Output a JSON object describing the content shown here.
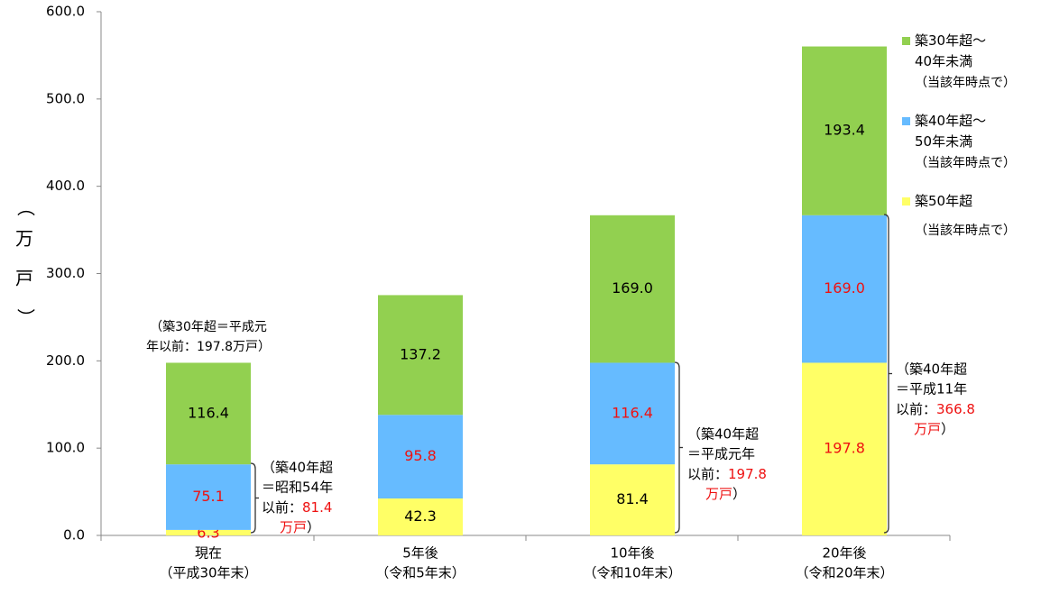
{
  "chart_data": {
    "type": "bar",
    "stacked": true,
    "ylabel": "（万戸）",
    "ylim": [
      0,
      600
    ],
    "yticks": [
      "0.0",
      "100.0",
      "200.0",
      "300.0",
      "400.0",
      "500.0",
      "600.0"
    ],
    "grid": false,
    "legend_position": "right",
    "categories": [
      {
        "line1": "現在",
        "line2": "（平成30年末）"
      },
      {
        "line1": "5年後",
        "line2": "（令和5年末）"
      },
      {
        "line1": "10年後",
        "line2": "（令和10年末）"
      },
      {
        "line1": "20年後",
        "line2": "（令和20年末）"
      }
    ],
    "series": [
      {
        "key": "s50",
        "color": "#ffff66",
        "values": [
          6.3,
          42.3,
          81.4,
          197.8
        ],
        "labels": [
          "6.3",
          "42.3",
          "81.4",
          "197.8"
        ],
        "label_colors": [
          "#ee1111",
          "#000000",
          "#000000",
          "#ee1111"
        ]
      },
      {
        "key": "s40",
        "color": "#66bbff",
        "values": [
          75.1,
          95.8,
          116.4,
          169.0
        ],
        "labels": [
          "75.1",
          "95.8",
          "116.4",
          "169.0"
        ],
        "label_colors": [
          "#ee1111",
          "#ee1111",
          "#ee1111",
          "#ee1111"
        ]
      },
      {
        "key": "s30",
        "color": "#92d050",
        "values": [
          116.4,
          137.2,
          169.0,
          193.4
        ],
        "labels": [
          "116.4",
          "137.2",
          "169.0",
          "193.4"
        ],
        "label_colors": [
          "#000000",
          "#000000",
          "#000000",
          "#000000"
        ]
      }
    ],
    "legend": [
      {
        "color": "#92d050",
        "line1": "築30年超～",
        "line2": "40年未満",
        "note": "（当該年時点で）"
      },
      {
        "color": "#66bbff",
        "line1": "築40年超～",
        "line2": "50年未満",
        "note": "（当該年時点で）"
      },
      {
        "color": "#ffff66",
        "line1": "築50年超",
        "line2": "",
        "note": "（当該年時点で）"
      }
    ],
    "annotations": {
      "top": {
        "line1": "（築30年超＝平成元",
        "line2": "年以前：197.8万戸）"
      },
      "b1": {
        "line1": "（築40年超",
        "line2": "＝昭和54年",
        "line3_black": "以前：",
        "line3_red": "81.4",
        "line4_red": "万戸",
        "line4_black": "）"
      },
      "b2": {
        "line1": "（築40年超",
        "line2": "＝平成元年",
        "line3_black": "以前：",
        "line3_red": "197.8",
        "line4_red": "万戸",
        "line4_black": "）"
      },
      "b3": {
        "line1": "（築40年超",
        "line2": "＝平成11年",
        "line3_black": "以前：",
        "line3_red": "366.8",
        "line4_red": "万戸",
        "line4_black": "）"
      }
    }
  }
}
